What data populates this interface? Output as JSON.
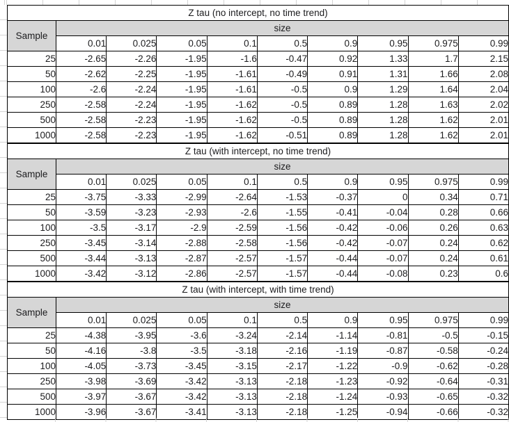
{
  "sheet": {
    "colors": {
      "header_fill": "#d6d6d6",
      "table_border": "#000000",
      "gridline": "#d4d4d4",
      "text": "#1c1c1e"
    },
    "tables": [
      {
        "title": "Z tau (no intercept, no time trend)",
        "sample_header": "Sample",
        "size_header": "size",
        "quantiles": [
          "0.01",
          "0.025",
          "0.05",
          "0.1",
          "0.5",
          "0.9",
          "0.95",
          "0.975",
          "0.99"
        ],
        "rows": [
          {
            "sample": "25",
            "values": [
              "-2.65",
              "-2.26",
              "-1.95",
              "-1.6",
              "-0.47",
              "0.92",
              "1.33",
              "1.7",
              "2.15"
            ]
          },
          {
            "sample": "50",
            "values": [
              "-2.62",
              "-2.25",
              "-1.95",
              "-1.61",
              "-0.49",
              "0.91",
              "1.31",
              "1.66",
              "2.08"
            ]
          },
          {
            "sample": "100",
            "values": [
              "-2.6",
              "-2.24",
              "-1.95",
              "-1.61",
              "-0.5",
              "0.9",
              "1.29",
              "1.64",
              "2.04"
            ]
          },
          {
            "sample": "250",
            "values": [
              "-2.58",
              "-2.24",
              "-1.95",
              "-1.62",
              "-0.5",
              "0.89",
              "1.28",
              "1.63",
              "2.02"
            ]
          },
          {
            "sample": "500",
            "values": [
              "-2.58",
              "-2.23",
              "-1.95",
              "-1.62",
              "-0.5",
              "0.89",
              "1.28",
              "1.62",
              "2.01"
            ]
          },
          {
            "sample": "1000",
            "values": [
              "-2.58",
              "-2.23",
              "-1.95",
              "-1.62",
              "-0.51",
              "0.89",
              "1.28",
              "1.62",
              "2.01"
            ]
          }
        ]
      },
      {
        "title": "Z tau (with intercept, no time trend)",
        "sample_header": "Sample",
        "size_header": "size",
        "quantiles": [
          "0.01",
          "0.025",
          "0.05",
          "0.1",
          "0.5",
          "0.9",
          "0.95",
          "0.975",
          "0.99"
        ],
        "rows": [
          {
            "sample": "25",
            "values": [
              "-3.75",
              "-3.33",
              "-2.99",
              "-2.64",
              "-1.53",
              "-0.37",
              "0",
              "0.34",
              "0.71"
            ]
          },
          {
            "sample": "50",
            "values": [
              "-3.59",
              "-3.23",
              "-2.93",
              "-2.6",
              "-1.55",
              "-0.41",
              "-0.04",
              "0.28",
              "0.66"
            ]
          },
          {
            "sample": "100",
            "values": [
              "-3.5",
              "-3.17",
              "-2.9",
              "-2.59",
              "-1.56",
              "-0.42",
              "-0.06",
              "0.26",
              "0.63"
            ]
          },
          {
            "sample": "250",
            "values": [
              "-3.45",
              "-3.14",
              "-2.88",
              "-2.58",
              "-1.56",
              "-0.42",
              "-0.07",
              "0.24",
              "0.62"
            ]
          },
          {
            "sample": "500",
            "values": [
              "-3.44",
              "-3.13",
              "-2.87",
              "-2.57",
              "-1.57",
              "-0.44",
              "-0.07",
              "0.24",
              "0.61"
            ]
          },
          {
            "sample": "1000",
            "values": [
              "-3.42",
              "-3.12",
              "-2.86",
              "-2.57",
              "-1.57",
              "-0.44",
              "-0.08",
              "0.23",
              "0.6"
            ]
          }
        ]
      },
      {
        "title": "Z tau (with intercept, with time trend)",
        "sample_header": "Sample",
        "size_header": "size",
        "quantiles": [
          "0.01",
          "0.025",
          "0.05",
          "0.1",
          "0.5",
          "0.9",
          "0.95",
          "0.975",
          "0.99"
        ],
        "rows": [
          {
            "sample": "25",
            "values": [
              "-4.38",
              "-3.95",
              "-3.6",
              "-3.24",
              "-2.14",
              "-1.14",
              "-0.81",
              "-0.5",
              "-0.15"
            ]
          },
          {
            "sample": "50",
            "values": [
              "-4.16",
              "-3.8",
              "-3.5",
              "-3.18",
              "-2.16",
              "-1.19",
              "-0.87",
              "-0.58",
              "-0.24"
            ]
          },
          {
            "sample": "100",
            "values": [
              "-4.05",
              "-3.73",
              "-3.45",
              "-3.15",
              "-2.17",
              "-1.22",
              "-0.9",
              "-0.62",
              "-0.28"
            ]
          },
          {
            "sample": "250",
            "values": [
              "-3.98",
              "-3.69",
              "-3.42",
              "-3.13",
              "-2.18",
              "-1.23",
              "-0.92",
              "-0.64",
              "-0.31"
            ]
          },
          {
            "sample": "500",
            "values": [
              "-3.97",
              "-3.67",
              "-3.42",
              "-3.13",
              "-2.18",
              "-1.24",
              "-0.93",
              "-0.65",
              "-0.32"
            ]
          },
          {
            "sample": "1000",
            "values": [
              "-3.96",
              "-3.67",
              "-3.41",
              "-3.13",
              "-2.18",
              "-1.25",
              "-0.94",
              "-0.66",
              "-0.32"
            ]
          }
        ]
      }
    ]
  }
}
